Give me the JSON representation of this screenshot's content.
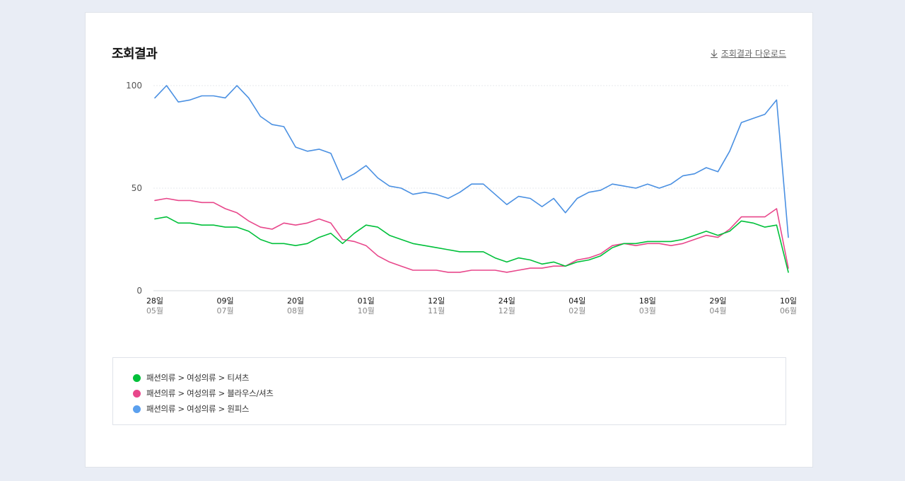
{
  "panel": {
    "title": "조회결과",
    "download_label": "조회결과 다운로드"
  },
  "chart_data": {
    "type": "line",
    "ylim": [
      0,
      100
    ],
    "y_ticks": [
      "100",
      "50",
      "0"
    ],
    "grid": "horizontal dotted",
    "legend_position": "bottom",
    "x_ticks": [
      {
        "day": "28일",
        "month": "05월"
      },
      {
        "day": "09일",
        "month": "07월"
      },
      {
        "day": "20일",
        "month": "08월"
      },
      {
        "day": "01일",
        "month": "10월"
      },
      {
        "day": "12일",
        "month": "11월"
      },
      {
        "day": "24일",
        "month": "12월"
      },
      {
        "day": "04일",
        "month": "02월"
      },
      {
        "day": "18일",
        "month": "03월"
      },
      {
        "day": "29일",
        "month": "04월"
      },
      {
        "day": "10일",
        "month": "06월"
      }
    ],
    "series": [
      {
        "name": "패션의류 > 여성의류 > 원피스",
        "color": "#4a90e2",
        "values": [
          94,
          100,
          92,
          93,
          95,
          95,
          94,
          100,
          94,
          85,
          81,
          80,
          70,
          68,
          69,
          67,
          54,
          57,
          61,
          55,
          51,
          50,
          47,
          48,
          47,
          45,
          48,
          52,
          52,
          47,
          42,
          46,
          45,
          41,
          45,
          38,
          45,
          48,
          49,
          52,
          51,
          50,
          52,
          50,
          52,
          56,
          57,
          60,
          58,
          68,
          82,
          84,
          86,
          93,
          26
        ]
      },
      {
        "name": "패션의류 > 여성의류 > 블라우스/셔츠",
        "color": "#e8478b",
        "values": [
          44,
          45,
          44,
          44,
          43,
          43,
          40,
          38,
          34,
          31,
          30,
          33,
          32,
          33,
          35,
          33,
          25,
          24,
          22,
          17,
          14,
          12,
          10,
          10,
          10,
          9,
          9,
          10,
          10,
          10,
          9,
          10,
          11,
          11,
          12,
          12,
          15,
          16,
          18,
          22,
          23,
          22,
          23,
          23,
          22,
          23,
          25,
          27,
          26,
          30,
          36,
          36,
          36,
          40,
          11
        ]
      },
      {
        "name": "패션의류 > 여성의류 > 티셔츠",
        "color": "#00c03a",
        "values": [
          35,
          36,
          33,
          33,
          32,
          32,
          31,
          31,
          29,
          25,
          23,
          23,
          22,
          23,
          26,
          28,
          23,
          28,
          32,
          31,
          27,
          25,
          23,
          22,
          21,
          20,
          19,
          19,
          19,
          16,
          14,
          16,
          15,
          13,
          14,
          12,
          14,
          15,
          17,
          21,
          23,
          23,
          24,
          24,
          24,
          25,
          27,
          29,
          27,
          29,
          34,
          33,
          31,
          32,
          9
        ]
      }
    ]
  },
  "legend": {
    "items": [
      {
        "label": "패션의류 > 여성의류 > 티셔츠",
        "color": "#00c03a"
      },
      {
        "label": "패션의류 > 여성의류 > 블라우스/셔츠",
        "color": "#e8478b"
      },
      {
        "label": "패션의류 > 여성의류 > 원피스",
        "color": "#5ba0ee"
      }
    ]
  }
}
